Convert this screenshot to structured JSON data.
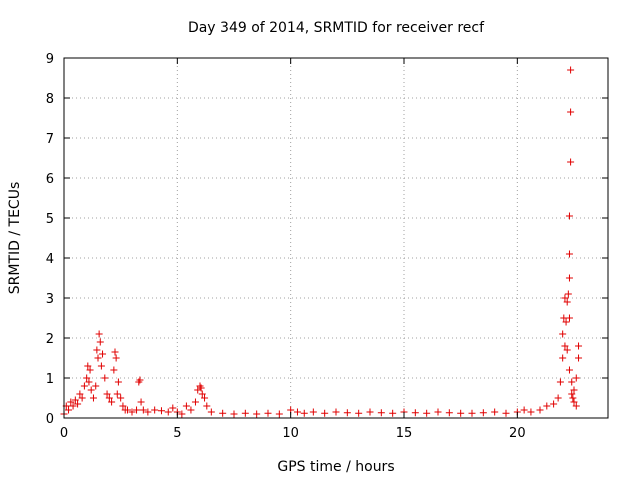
{
  "chart_data": {
    "type": "scatter",
    "title": "Day 349 of 2014, SRMTID for receiver recf",
    "xlabel": "GPS time / hours",
    "ylabel": "SRMTID / TECUs",
    "xlim": [
      0,
      24
    ],
    "ylim": [
      0,
      9
    ],
    "xticks": [
      0,
      5,
      10,
      15,
      20
    ],
    "yticks": [
      0,
      1,
      2,
      3,
      4,
      5,
      6,
      7,
      8,
      9
    ],
    "grid": true,
    "legend": "none",
    "marker": "plus",
    "color": "#e00000",
    "x": [
      0.0,
      0.1,
      0.2,
      0.3,
      0.4,
      0.5,
      0.6,
      0.7,
      0.8,
      0.9,
      1.0,
      1.05,
      1.1,
      1.15,
      1.2,
      1.3,
      1.4,
      1.45,
      1.5,
      1.55,
      1.6,
      1.65,
      1.7,
      1.8,
      1.9,
      2.0,
      2.1,
      2.2,
      2.25,
      2.3,
      2.35,
      2.4,
      2.5,
      2.6,
      2.7,
      2.8,
      3.0,
      3.2,
      3.3,
      3.35,
      3.4,
      3.5,
      3.7,
      4.0,
      4.3,
      4.6,
      4.8,
      5.0,
      5.2,
      5.4,
      5.6,
      5.8,
      5.9,
      6.0,
      6.05,
      6.1,
      6.2,
      6.3,
      6.5,
      7.0,
      7.5,
      8.0,
      8.5,
      9.0,
      9.5,
      10.0,
      10.3,
      10.6,
      11.0,
      11.5,
      12.0,
      12.5,
      13.0,
      13.5,
      14.0,
      14.5,
      15.0,
      15.5,
      16.0,
      16.5,
      17.0,
      17.5,
      18.0,
      18.5,
      19.0,
      19.5,
      20.0,
      20.3,
      20.6,
      21.0,
      21.3,
      21.6,
      21.8,
      21.9,
      22.0,
      22.0,
      22.05,
      22.1,
      22.1,
      22.15,
      22.2,
      22.2,
      22.25,
      22.3,
      22.3,
      22.3,
      22.3,
      22.35,
      22.35,
      22.35,
      22.3,
      22.4,
      22.4,
      22.45,
      22.5,
      22.5,
      22.6,
      22.6,
      22.7,
      22.7
    ],
    "y": [
      0.1,
      0.3,
      0.2,
      0.4,
      0.3,
      0.45,
      0.35,
      0.6,
      0.5,
      0.8,
      1.0,
      1.3,
      0.9,
      1.2,
      0.7,
      0.5,
      0.8,
      1.7,
      1.5,
      2.1,
      1.9,
      1.3,
      1.6,
      1.0,
      0.6,
      0.5,
      0.4,
      1.2,
      1.65,
      1.5,
      0.6,
      0.9,
      0.5,
      0.3,
      0.2,
      0.2,
      0.15,
      0.2,
      0.9,
      0.95,
      0.4,
      0.2,
      0.15,
      0.2,
      0.18,
      0.15,
      0.25,
      0.15,
      0.1,
      0.3,
      0.2,
      0.4,
      0.7,
      0.8,
      0.75,
      0.6,
      0.5,
      0.3,
      0.15,
      0.12,
      0.1,
      0.12,
      0.1,
      0.12,
      0.1,
      0.2,
      0.15,
      0.12,
      0.15,
      0.12,
      0.15,
      0.13,
      0.12,
      0.15,
      0.13,
      0.12,
      0.15,
      0.13,
      0.12,
      0.15,
      0.13,
      0.12,
      0.12,
      0.13,
      0.15,
      0.12,
      0.15,
      0.2,
      0.15,
      0.2,
      0.3,
      0.35,
      0.5,
      0.9,
      1.5,
      2.1,
      2.5,
      1.8,
      3.0,
      2.4,
      1.7,
      2.9,
      3.1,
      2.5,
      3.5,
      4.1,
      5.05,
      6.4,
      7.65,
      8.7,
      1.2,
      0.9,
      0.6,
      0.5,
      0.4,
      0.7,
      1.0,
      0.3,
      1.5,
      1.8
    ]
  }
}
